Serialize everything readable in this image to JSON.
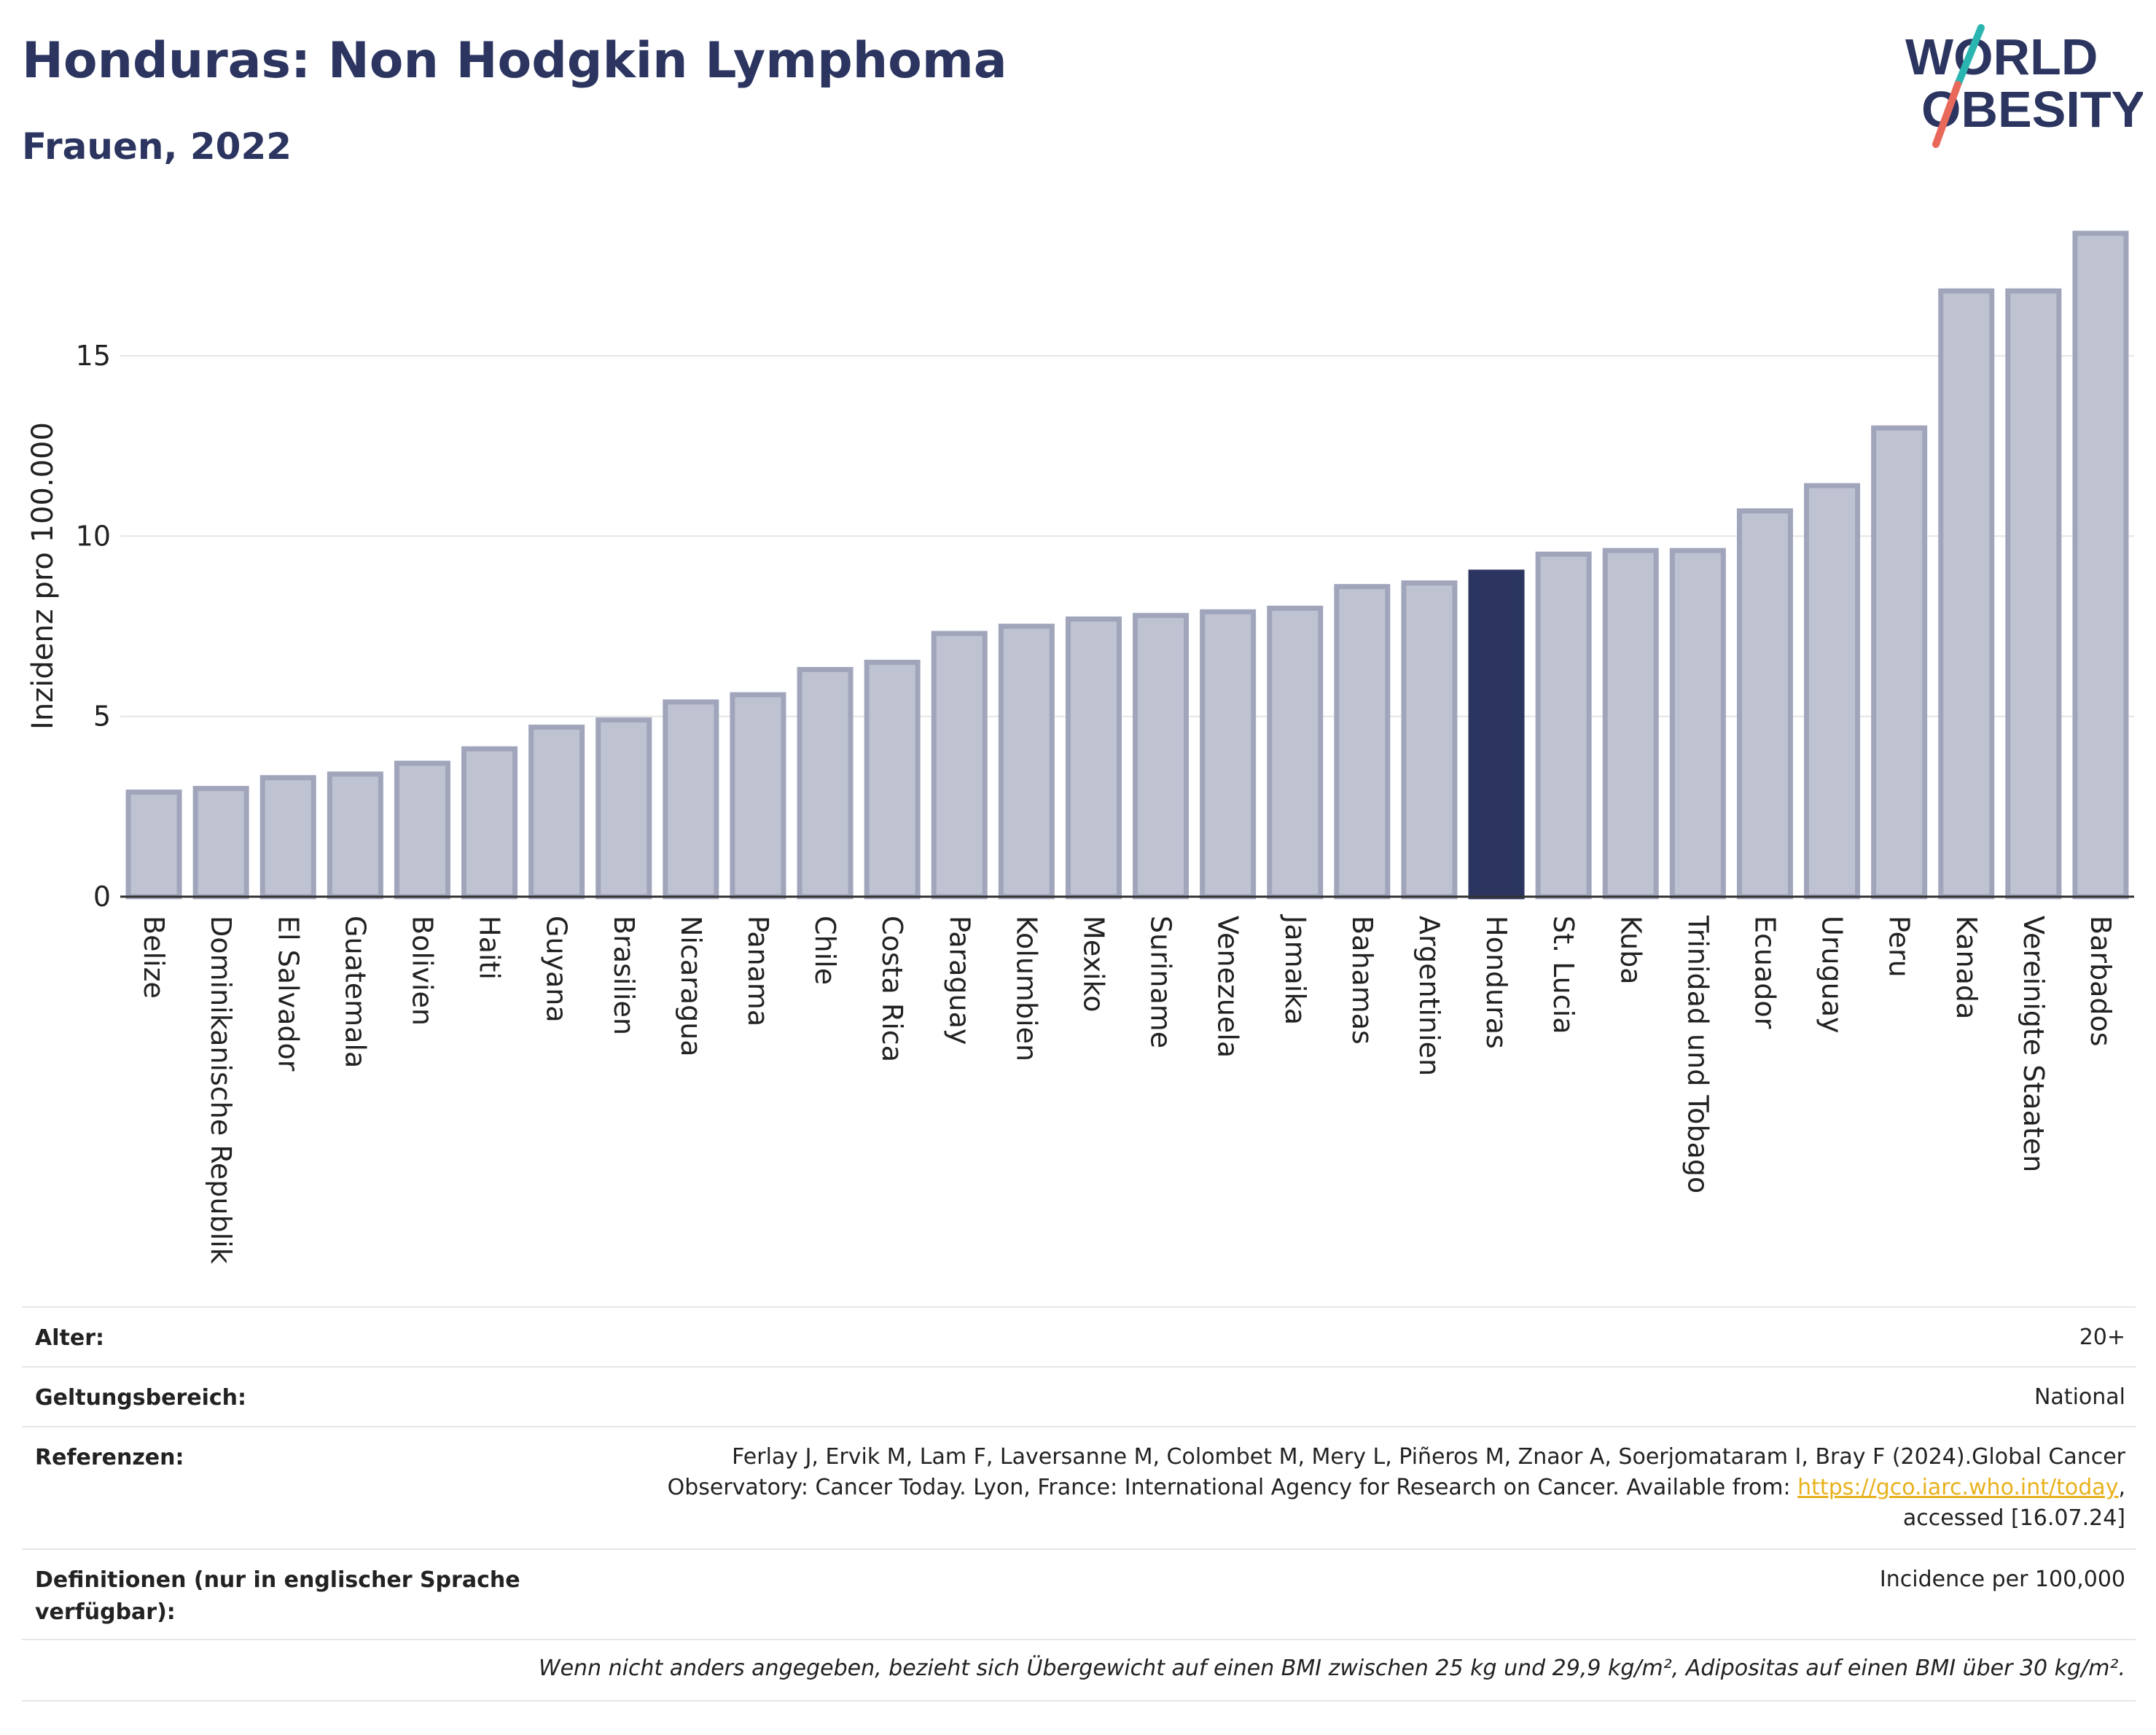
{
  "header": {
    "title": "Honduras: Non Hodgkin Lymphoma",
    "subtitle": "Frauen, 2022"
  },
  "logo": {
    "line1": "WORLD",
    "line2": "OBESITY",
    "colors": {
      "text": "#2b3560",
      "slash_top": "#2bb5b0",
      "slash_bottom": "#e8685a"
    }
  },
  "colors": {
    "bar": "#bfc3d1",
    "bar_stroke": "#a0a5bb",
    "highlight": "#2b3560",
    "grid": "#e5e5e5",
    "axis": "#333333"
  },
  "chart_data": {
    "type": "bar",
    "ylabel": "Inzidenz pro 100.000",
    "xlabel": "",
    "ylim": [
      0,
      18.8
    ],
    "yticks": [
      0,
      5,
      10,
      15
    ],
    "grid": true,
    "highlight": "Honduras",
    "categories": [
      "Belize",
      "Dominikanische Republik",
      "El Salvador",
      "Guatemala",
      "Bolivien",
      "Haiti",
      "Guyana",
      "Brasilien",
      "Nicaragua",
      "Panama",
      "Chile",
      "Costa Rica",
      "Paraguay",
      "Kolumbien",
      "Mexiko",
      "Suriname",
      "Venezuela",
      "Jamaika",
      "Bahamas",
      "Argentinien",
      "Honduras",
      "St. Lucia",
      "Kuba",
      "Trinidad und Tobago",
      "Ecuador",
      "Uruguay",
      "Peru",
      "Kanada",
      "Vereinigte Staaten",
      "Barbados"
    ],
    "values": [
      2.9,
      3.0,
      3.3,
      3.4,
      3.7,
      4.1,
      4.7,
      4.9,
      5.4,
      5.6,
      6.3,
      6.5,
      7.3,
      7.5,
      7.7,
      7.8,
      7.9,
      8.0,
      8.6,
      8.7,
      9.0,
      9.5,
      9.6,
      9.6,
      10.7,
      11.4,
      13.0,
      16.8,
      16.8,
      18.4
    ]
  },
  "meta": {
    "age_label": "Alter:",
    "age_value": "20+",
    "scope_label": "Geltungsbereich:",
    "scope_value": "National",
    "ref_label": "Referenzen:",
    "ref_line1": "Ferlay J, Ervik M, Lam F, Laversanne M, Colombet M, Mery L, Piñeros M, Znaor A, Soerjomataram I, Bray F (2024).Global Cancer",
    "ref_line2_pre": "Observatory: Cancer Today. Lyon, France: International Agency for Research on Cancer. Available from: ",
    "ref_link": "https://gco.iarc.who.int/today",
    "ref_line2_post": ",",
    "ref_line3": "accessed [16.07.24]",
    "def_label_line1": "Definitionen (nur in englischer Sprache",
    "def_label_line2": "verfügbar):",
    "def_value": "Incidence per 100,000",
    "footnote": "Wenn nicht anders angegeben, bezieht sich Übergewicht auf einen BMI zwischen 25 kg und 29,9 kg/m², Adipositas auf einen BMI über 30 kg/m²."
  }
}
